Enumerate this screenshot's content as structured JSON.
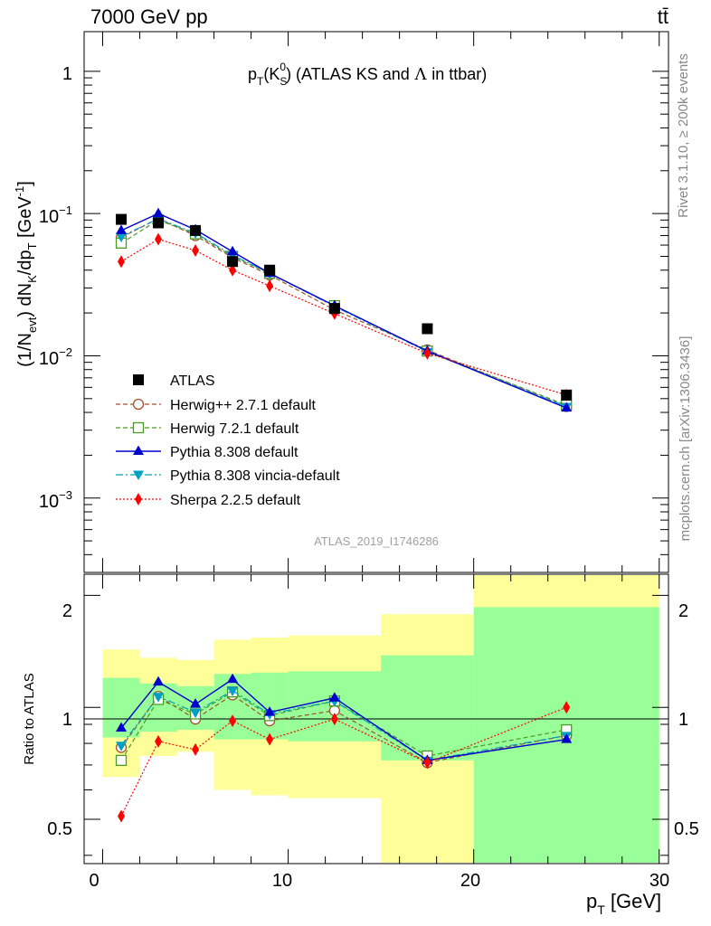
{
  "header": {
    "energy": "7000 GeV pp",
    "process": "tt̄"
  },
  "plot_title": "p_T(K_S^0) (ATLAS KS and Λ in ttbar)",
  "side_notes": {
    "rivet": "Rivet 3.1.10, ≥ 200k events",
    "mcplots": "mcplots.cern.ch [arXiv:1306.3436]"
  },
  "analysis_id": "ATLAS_2019_I1746286",
  "axes": {
    "main_ylabel": "(1/N_evt) dN_K/dp_T [GeV^-1]",
    "ratio_ylabel": "Ratio to ATLAS",
    "xlabel": "p_T [GeV]",
    "x_ticks": [
      "0",
      "10",
      "20",
      "30"
    ],
    "y_ticks_main": [
      "1",
      "10^-1",
      "10^-2",
      "10^-3"
    ],
    "y_ticks_ratio": [
      "2",
      "1",
      "0.5"
    ]
  },
  "chart_data": [
    {
      "type": "scatter",
      "panel": "main",
      "xlim": [
        -1,
        30.5
      ],
      "ylim": [
        0.0003,
        1.9
      ],
      "yscale": "log",
      "x": [
        1,
        3,
        5,
        7,
        9,
        12.5,
        17.5,
        25
      ],
      "series": [
        {
          "name": "ATLAS",
          "color": "#000000",
          "marker": "square",
          "line": "none",
          "values": [
            0.091,
            0.086,
            0.076,
            0.046,
            0.04,
            0.0215,
            0.0155,
            0.0053
          ]
        },
        {
          "name": "Herwig++ 2.7.1 default",
          "color": "#a0522d",
          "marker": "open-circle",
          "line": "dashed",
          "values": [
            0.068,
            0.092,
            0.07,
            0.049,
            0.037,
            0.021,
            0.011,
            0.0044
          ]
        },
        {
          "name": "Herwig 7.2.1 default",
          "color": "#4b9a26",
          "marker": "open-square",
          "line": "dashed",
          "values": [
            0.062,
            0.09,
            0.072,
            0.05,
            0.038,
            0.0225,
            0.0108,
            0.0045
          ]
        },
        {
          "name": "Pythia 8.308 default",
          "color": "#0000cd",
          "marker": "triangle-up",
          "line": "solid",
          "values": [
            0.076,
            0.1,
            0.077,
            0.054,
            0.038,
            0.0225,
            0.0108,
            0.0043
          ]
        },
        {
          "name": "Pythia 8.308 vincia-default",
          "color": "#00a0c0",
          "marker": "triangle-down",
          "line": "dashdot",
          "values": [
            0.069,
            0.092,
            0.073,
            0.051,
            0.038,
            0.0222,
            0.0107,
            0.0044
          ]
        },
        {
          "name": "Sherpa 2.2.5 default",
          "color": "#ff0000",
          "marker": "diamond",
          "line": "dotted",
          "values": [
            0.046,
            0.066,
            0.055,
            0.04,
            0.031,
            0.0198,
            0.0104,
            0.0053
          ]
        }
      ]
    },
    {
      "type": "line",
      "panel": "ratio",
      "xlim": [
        -1,
        30.5
      ],
      "ylim": [
        0.38,
        2.28
      ],
      "yscale": "log",
      "reference_line": 1,
      "bands": [
        {
          "x0": 0,
          "x1": 2,
          "yellow": [
            0.65,
            1.43
          ],
          "green": [
            0.83,
            1.2
          ]
        },
        {
          "x0": 2,
          "x1": 4,
          "yellow": [
            0.74,
            1.36
          ],
          "green": [
            0.86,
            1.16
          ]
        },
        {
          "x0": 4,
          "x1": 6,
          "yellow": [
            0.76,
            1.34
          ],
          "green": [
            0.87,
            1.14
          ]
        },
        {
          "x0": 6,
          "x1": 8,
          "yellow": [
            0.6,
            1.52
          ],
          "green": [
            0.82,
            1.23
          ]
        },
        {
          "x0": 8,
          "x1": 10,
          "yellow": [
            0.58,
            1.54
          ],
          "green": [
            0.82,
            1.24
          ]
        },
        {
          "x0": 10,
          "x1": 15,
          "yellow": [
            0.57,
            1.56
          ],
          "green": [
            0.81,
            1.25
          ]
        },
        {
          "x0": 15,
          "x1": 20,
          "yellow": [
            0.38,
            1.78
          ],
          "green": [
            0.72,
            1.38
          ]
        },
        {
          "x0": 20,
          "x1": 30,
          "yellow": [
            0.38,
            2.28
          ],
          "green": [
            0.38,
            1.86
          ]
        }
      ],
      "x": [
        1,
        3,
        5,
        7,
        9,
        12.5,
        17.5,
        25
      ],
      "series": [
        {
          "name": "Herwig++ 2.7.1 default",
          "values": [
            0.78,
            1.07,
            0.93,
            1.08,
            0.92,
            0.98,
            0.71,
            0.84
          ]
        },
        {
          "name": "Herwig 7.2.1 default",
          "values": [
            0.72,
            1.05,
            0.96,
            1.1,
            0.95,
            1.04,
            0.74,
            0.87
          ]
        },
        {
          "name": "Pythia 8.308 default",
          "values": [
            0.88,
            1.17,
            1.02,
            1.19,
            0.97,
            1.06,
            0.72,
            0.82
          ]
        },
        {
          "name": "Pythia 8.308 vincia-default",
          "values": [
            0.79,
            1.07,
            0.97,
            1.11,
            0.96,
            1.04,
            0.72,
            0.84
          ]
        },
        {
          "name": "Sherpa 2.2.5 default",
          "values": [
            0.51,
            0.81,
            0.77,
            0.92,
            0.82,
            0.93,
            0.71,
            1.0
          ]
        }
      ]
    }
  ]
}
